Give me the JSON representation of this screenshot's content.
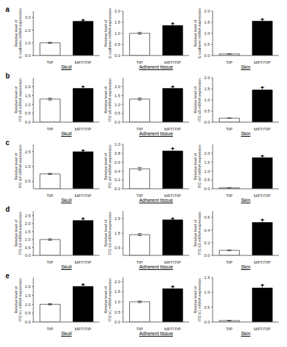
{
  "chart_data": [
    {
      "type": "bar",
      "title": "a",
      "xlabel": "Skull",
      "ylabel": "Relative level of\nE-cadherin mRNA expression",
      "categories": [
        "TiP",
        "MEDTiP"
      ],
      "values": [
        1.0,
        2.7
      ],
      "errors": [
        0.04,
        0.08
      ],
      "colors": [
        "white",
        "black"
      ],
      "ylim": [
        0,
        3.5
      ],
      "yticks": [
        {
          "value": 0,
          "label": "0.0"
        },
        0.5,
        {
          "value": 1.0,
          "label": "1.0"
        },
        1.5,
        {
          "value": 2.0,
          "label": "2.0"
        },
        2.5,
        {
          "value": 3.0,
          "label": "3.0"
        }
      ],
      "annotations": [
        {
          "text": "*",
          "x": "MEDTiP"
        }
      ]
    },
    {
      "type": "bar",
      "xlabel": "Adherent tissue",
      "ylabel": "Relative level of\nE-cadherin mRNA expression",
      "categories": [
        "TiP",
        "MEDTiP"
      ],
      "values": [
        1.0,
        1.35
      ],
      "errors": [
        0.04,
        0.08
      ],
      "colors": [
        "white",
        "black"
      ],
      "ylim": [
        0,
        2.0
      ],
      "yticks": [
        {
          "value": 0,
          "label": "0.0"
        },
        0.5,
        {
          "value": 1.0,
          "label": "1.0"
        },
        1.5,
        {
          "value": 2.0,
          "label": "2.0"
        }
      ],
      "annotations": [
        {
          "text": "*",
          "x": "MEDTiP"
        }
      ]
    },
    {
      "type": "bar",
      "xlabel": "Skin",
      "ylabel": "Relative level of\nE-cadherin mRNA expression",
      "categories": [
        "TiP",
        "MEDTiP"
      ],
      "values": [
        0.07,
        1.55
      ],
      "errors": [
        0.004,
        0.08
      ],
      "colors": [
        "white",
        "black"
      ],
      "ylim": [
        0,
        2.0
      ],
      "yticks": [
        {
          "value": 0,
          "label": "0.0"
        },
        0.5,
        {
          "value": 1.0,
          "label": "1.0"
        },
        1.5,
        {
          "value": 2.0,
          "label": "2.0"
        }
      ],
      "annotations": [
        {
          "text": "*",
          "x": "MEDTiP"
        }
      ]
    },
    {
      "type": "bar",
      "title": "b",
      "xlabel": "Skull",
      "ylabel": "Relative level of\nITG α5 mRNA expression",
      "categories": [
        "TiP",
        "MEDTiP"
      ],
      "values": [
        1.3,
        1.9
      ],
      "errors": [
        0.06,
        0.1
      ],
      "colors": [
        "white",
        "black"
      ],
      "ylim": [
        0,
        2.5
      ],
      "yticks": [
        {
          "value": 0,
          "label": "0.0"
        },
        0.5,
        {
          "value": 1.0,
          "label": "1.0"
        },
        1.5,
        {
          "value": 2.0,
          "label": "2.0"
        }
      ],
      "annotations": [
        {
          "text": "*",
          "x": "MEDTiP"
        }
      ]
    },
    {
      "type": "bar",
      "xlabel": "Adherent tissue",
      "ylabel": "Relative level of\nITG α5 mRNA expression",
      "categories": [
        "TiP",
        "MEDTiP"
      ],
      "values": [
        1.3,
        1.9
      ],
      "errors": [
        0.06,
        0.08
      ],
      "colors": [
        "white",
        "black"
      ],
      "ylim": [
        0,
        2.5
      ],
      "yticks": [
        {
          "value": 0,
          "label": "0.0"
        },
        0.5,
        {
          "value": 1.0,
          "label": "1.0"
        },
        1.5,
        {
          "value": 2.0,
          "label": "2.0"
        }
      ],
      "annotations": [
        {
          "text": "*",
          "x": "MEDTiP"
        }
      ]
    },
    {
      "type": "bar",
      "xlabel": "Skin",
      "ylabel": "Relative level of\nITG α5 mRNA expression",
      "categories": [
        "TiP",
        "MEDTiP"
      ],
      "values": [
        0.18,
        1.45
      ],
      "errors": [
        0.01,
        0.1
      ],
      "colors": [
        "white",
        "black"
      ],
      "ylim": [
        0,
        2.0
      ],
      "yticks": [
        {
          "value": 0,
          "label": "0.0"
        },
        0.5,
        {
          "value": 1.0,
          "label": "1.0"
        },
        1.5,
        {
          "value": 2.0,
          "label": "2.0"
        }
      ],
      "annotations": [
        {
          "text": "*",
          "x": "MEDTiP"
        }
      ]
    },
    {
      "type": "bar",
      "title": "c",
      "xlabel": "Skull",
      "ylabel": "Relative level of\nITG αV mRNA expression",
      "categories": [
        "TiP",
        "MEDTiP"
      ],
      "values": [
        1.0,
        2.5
      ],
      "errors": [
        0.04,
        0.1
      ],
      "colors": [
        "white",
        "black"
      ],
      "ylim": [
        0,
        3.0
      ],
      "yticks": [
        {
          "value": 0,
          "label": "0.0"
        },
        0.5,
        {
          "value": 1.0,
          "label": "1.0"
        },
        1.5,
        {
          "value": 2.0,
          "label": "2.0"
        },
        2.5
      ],
      "annotations": [
        {
          "text": "*",
          "x": "MEDTiP"
        }
      ]
    },
    {
      "type": "bar",
      "xlabel": "Adherent tissue",
      "ylabel": "Relative level of\nITG αV mRNA expression",
      "categories": [
        "TiP",
        "MEDTiP"
      ],
      "values": [
        0.45,
        0.85
      ],
      "errors": [
        0.03,
        0.05
      ],
      "colors": [
        "white",
        "black"
      ],
      "ylim": [
        0,
        1.0
      ],
      "yticks": [
        {
          "value": 0,
          "label": "0.0"
        },
        0.2,
        0.4,
        0.6,
        0.8,
        {
          "value": 1.0,
          "label": "1.0"
        }
      ],
      "annotations": [
        {
          "text": "*",
          "x": "MEDTiP"
        }
      ]
    },
    {
      "type": "bar",
      "xlabel": "Skin",
      "ylabel": "Relative level of\nITG αV mRNA expression",
      "categories": [
        "TiP",
        "MEDTiP"
      ],
      "values": [
        0.05,
        1.75
      ],
      "errors": [
        0.003,
        0.1
      ],
      "colors": [
        "white",
        "black"
      ],
      "ylim": [
        0,
        2.5
      ],
      "yticks": [
        {
          "value": 0,
          "label": "0.0"
        },
        0.5,
        {
          "value": 1.0,
          "label": "1.0"
        },
        1.5,
        {
          "value": 2.0,
          "label": "2.0"
        }
      ],
      "annotations": [
        {
          "text": "*",
          "x": "MEDTiP"
        }
      ]
    },
    {
      "type": "bar",
      "title": "d",
      "xlabel": "Skull",
      "ylabel": "Relative level of\nITG b3 mRNA expression",
      "categories": [
        "TiP",
        "MEDTiP"
      ],
      "values": [
        1.0,
        2.2
      ],
      "errors": [
        0.05,
        0.1
      ],
      "colors": [
        "white",
        "black"
      ],
      "ylim": [
        0,
        2.8
      ],
      "yticks": [
        {
          "value": 0,
          "label": "0.0"
        },
        0.5,
        {
          "value": 1.0,
          "label": "1.0"
        },
        1.5,
        {
          "value": 2.0,
          "label": "2.0"
        },
        2.5
      ],
      "annotations": [
        {
          "text": "*",
          "x": "MEDTiP"
        }
      ]
    },
    {
      "type": "bar",
      "xlabel": "Adherent tissue",
      "ylabel": "Relative level of\nITG b3 mRNA expression",
      "categories": [
        "TiP",
        "MEDTiP"
      ],
      "values": [
        1.4,
        2.4
      ],
      "errors": [
        0.07,
        0.09
      ],
      "colors": [
        "white",
        "black"
      ],
      "ylim": [
        0,
        3.0
      ],
      "yticks": [
        {
          "value": 0,
          "label": "0.0"
        },
        0.5,
        {
          "value": 1.0,
          "label": "1.0"
        },
        1.5,
        {
          "value": 2.0,
          "label": "2.0"
        },
        2.5
      ],
      "annotations": [
        {
          "text": "*",
          "x": "MEDTiP"
        }
      ]
    },
    {
      "type": "bar",
      "xlabel": "Skin",
      "ylabel": "Relative level of\nITG b3 mRNA expression",
      "categories": [
        "TiP",
        "MEDTiP"
      ],
      "values": [
        0.08,
        0.52
      ],
      "errors": [
        0.005,
        0.04
      ],
      "colors": [
        "white",
        "black"
      ],
      "ylim": [
        0,
        0.7
      ],
      "yticks": [
        {
          "value": 0,
          "label": "0.0"
        },
        0.2,
        0.4,
        0.6
      ],
      "annotations": [
        {
          "text": "*",
          "x": "MEDTiP"
        }
      ]
    },
    {
      "type": "bar",
      "title": "e",
      "xlabel": "Skull",
      "ylabel": "Relative level of\nITG b1 mRNA expression",
      "categories": [
        "TiP",
        "MEDTiP"
      ],
      "values": [
        1.0,
        2.0
      ],
      "errors": [
        0.04,
        0.09
      ],
      "colors": [
        "white",
        "black"
      ],
      "ylim": [
        0,
        2.5
      ],
      "yticks": [
        {
          "value": 0,
          "label": "0.0"
        },
        0.5,
        {
          "value": 1.0,
          "label": "1.0"
        },
        1.5,
        {
          "value": 2.0,
          "label": "2.0"
        }
      ],
      "annotations": [
        {
          "text": "*",
          "x": "MEDTiP"
        }
      ]
    },
    {
      "type": "bar",
      "xlabel": "Adherent tissue",
      "ylabel": "Relative level of\nITG b1 mRNA expression",
      "categories": [
        "TiP",
        "MEDTiP"
      ],
      "values": [
        1.0,
        1.65
      ],
      "errors": [
        0.04,
        0.09
      ],
      "colors": [
        "white",
        "black"
      ],
      "ylim": [
        0,
        2.2
      ],
      "yticks": [
        {
          "value": 0,
          "label": "0.0"
        },
        0.5,
        {
          "value": 1.0,
          "label": "1.0"
        },
        1.5,
        {
          "value": 2.0,
          "label": "2.0"
        }
      ],
      "annotations": [
        {
          "text": "*",
          "x": "MEDTiP"
        }
      ]
    },
    {
      "type": "bar",
      "xlabel": "Skin",
      "ylabel": "Relative level of\nITG b1 mRNA expression",
      "categories": [
        "TiP",
        "MEDTiP"
      ],
      "values": [
        0.05,
        1.15
      ],
      "errors": [
        0.003,
        0.09
      ],
      "colors": [
        "white",
        "black"
      ],
      "ylim": [
        0,
        1.5
      ],
      "yticks": [
        {
          "value": 0,
          "label": "0.0"
        },
        0.5,
        {
          "value": 1.0,
          "label": "1.0"
        },
        1.5
      ],
      "annotations": [
        {
          "text": "*",
          "x": "MEDTiP"
        }
      ]
    }
  ]
}
